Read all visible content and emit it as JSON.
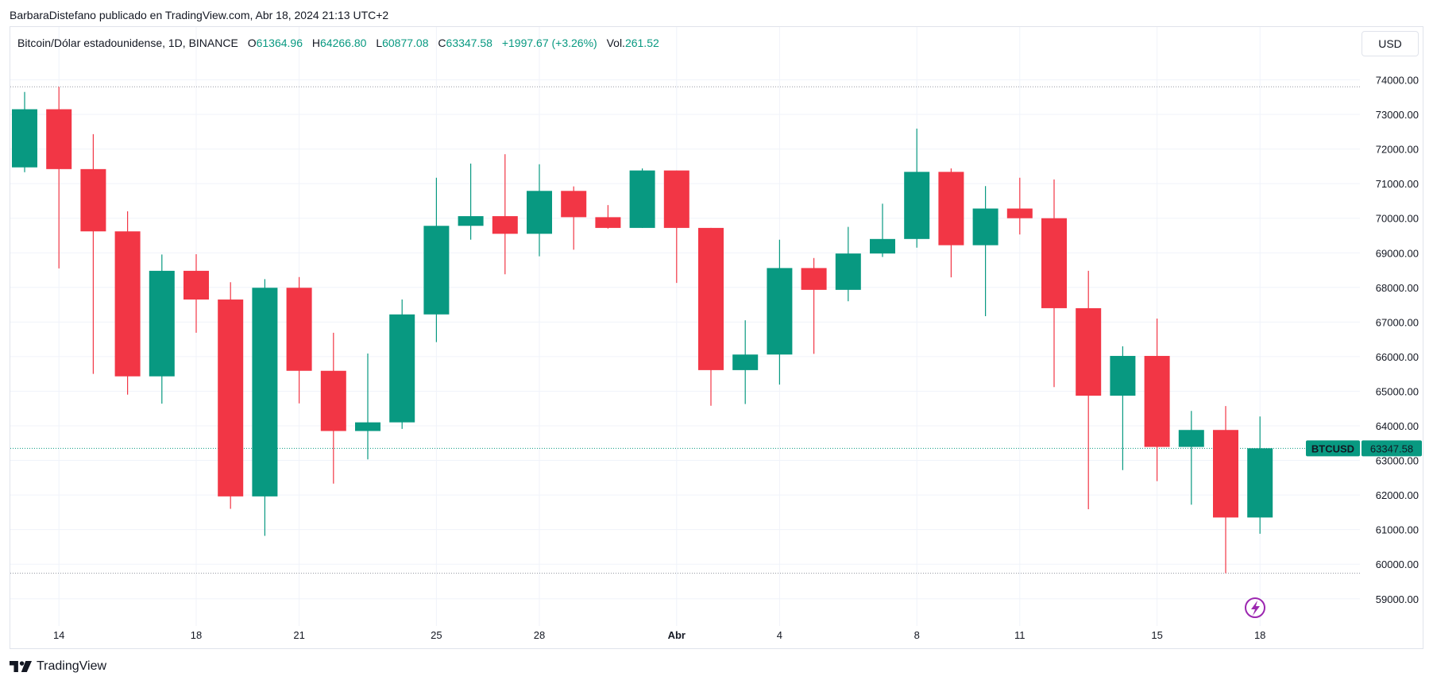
{
  "attribution": "BarbaraDistefano publicado en TradingView.com, Abr 18, 2024 21:13 UTC+2",
  "legend": {
    "symbol": "Bitcoin/Dólar estadounidense, 1D, BINANCE",
    "o_label": "O",
    "o_value": "61364.96",
    "h_label": "H",
    "h_value": "64266.80",
    "l_label": "L",
    "l_value": "60877.08",
    "c_label": "C",
    "c_value": "63347.58",
    "change": "+1997.67 (+3.26%)",
    "vol_label": "Vol.",
    "vol_value": "261.52"
  },
  "currency_button": "USD",
  "price_tag": {
    "symbol": "BTCUSD",
    "value": "63347.58"
  },
  "footer": {
    "brand": "TradingView"
  },
  "colors": {
    "up": "#089981",
    "down": "#f23645",
    "grid": "#f0f3fa",
    "axis_text": "#131722",
    "flash": "#9c27b0"
  },
  "icons": {
    "flash": "lightning-icon",
    "logo": "tradingview-logo-icon"
  },
  "chart_data": {
    "type": "candlestick",
    "symbol": "BTCUSD",
    "interval": "1D",
    "ylim": [
      58000,
      75300
    ],
    "y_ticks": [
      "74000.00",
      "73000.00",
      "72000.00",
      "71000.00",
      "70000.00",
      "69000.00",
      "68000.00",
      "67000.00",
      "66000.00",
      "65000.00",
      "64000.00",
      "63000.00",
      "62000.00",
      "61000.00",
      "60000.00",
      "59000.00"
    ],
    "x_ticks": [
      {
        "index": 1,
        "label": "14"
      },
      {
        "index": 5,
        "label": "18"
      },
      {
        "index": 8,
        "label": "21"
      },
      {
        "index": 12,
        "label": "25"
      },
      {
        "index": 15,
        "label": "28"
      },
      {
        "index": 19,
        "label": "Abr",
        "bold": true
      },
      {
        "index": 22,
        "label": "4"
      },
      {
        "index": 26,
        "label": "8"
      },
      {
        "index": 29,
        "label": "11"
      },
      {
        "index": 33,
        "label": "15"
      },
      {
        "index": 36,
        "label": "18"
      }
    ],
    "candles": [
      {
        "o": 71470,
        "h": 73650,
        "l": 71330,
        "c": 73150
      },
      {
        "o": 73150,
        "h": 73800,
        "l": 68550,
        "c": 71420
      },
      {
        "o": 71420,
        "h": 72430,
        "l": 65500,
        "c": 69620
      },
      {
        "o": 69620,
        "h": 70200,
        "l": 64900,
        "c": 65430
      },
      {
        "o": 65430,
        "h": 68950,
        "l": 64640,
        "c": 68480
      },
      {
        "o": 68480,
        "h": 68960,
        "l": 66690,
        "c": 67650
      },
      {
        "o": 67650,
        "h": 68150,
        "l": 61600,
        "c": 61960
      },
      {
        "o": 61960,
        "h": 68240,
        "l": 60820,
        "c": 67990
      },
      {
        "o": 67990,
        "h": 68300,
        "l": 64650,
        "c": 65590
      },
      {
        "o": 65590,
        "h": 66690,
        "l": 62330,
        "c": 63850
      },
      {
        "o": 63850,
        "h": 66090,
        "l": 63030,
        "c": 64100
      },
      {
        "o": 64100,
        "h": 67650,
        "l": 63910,
        "c": 67220
      },
      {
        "o": 67220,
        "h": 71170,
        "l": 66420,
        "c": 69780
      },
      {
        "o": 69780,
        "h": 71580,
        "l": 69380,
        "c": 70060
      },
      {
        "o": 70060,
        "h": 71850,
        "l": 68380,
        "c": 69550
      },
      {
        "o": 69550,
        "h": 71560,
        "l": 68900,
        "c": 70790
      },
      {
        "o": 70790,
        "h": 70920,
        "l": 69090,
        "c": 70030
      },
      {
        "o": 70030,
        "h": 70380,
        "l": 69700,
        "c": 69720
      },
      {
        "o": 69720,
        "h": 71440,
        "l": 69720,
        "c": 71380
      },
      {
        "o": 71380,
        "h": 71380,
        "l": 68130,
        "c": 69720
      },
      {
        "o": 69720,
        "h": 69720,
        "l": 64580,
        "c": 65610
      },
      {
        "o": 65610,
        "h": 67050,
        "l": 64630,
        "c": 66060
      },
      {
        "o": 66060,
        "h": 69380,
        "l": 65190,
        "c": 68560
      },
      {
        "o": 68560,
        "h": 68850,
        "l": 66080,
        "c": 67930
      },
      {
        "o": 67930,
        "h": 69750,
        "l": 67600,
        "c": 68980
      },
      {
        "o": 68980,
        "h": 70420,
        "l": 68880,
        "c": 69400
      },
      {
        "o": 69400,
        "h": 72590,
        "l": 69150,
        "c": 71340
      },
      {
        "o": 71340,
        "h": 71440,
        "l": 68290,
        "c": 69220
      },
      {
        "o": 69220,
        "h": 70930,
        "l": 67170,
        "c": 70280
      },
      {
        "o": 70280,
        "h": 71170,
        "l": 69530,
        "c": 70000
      },
      {
        "o": 70000,
        "h": 71120,
        "l": 65120,
        "c": 67400
      },
      {
        "o": 67400,
        "h": 68480,
        "l": 61590,
        "c": 64870
      },
      {
        "o": 64870,
        "h": 66300,
        "l": 62720,
        "c": 66020
      },
      {
        "o": 66020,
        "h": 67100,
        "l": 62400,
        "c": 63390
      },
      {
        "o": 63390,
        "h": 64430,
        "l": 61720,
        "c": 63880
      },
      {
        "o": 63880,
        "h": 64570,
        "l": 59740,
        "c": 61350
      },
      {
        "o": 61350,
        "h": 64270,
        "l": 60880,
        "c": 63350
      }
    ],
    "high_line": 73800,
    "low_line": 59740,
    "last_price": 63347.58
  }
}
